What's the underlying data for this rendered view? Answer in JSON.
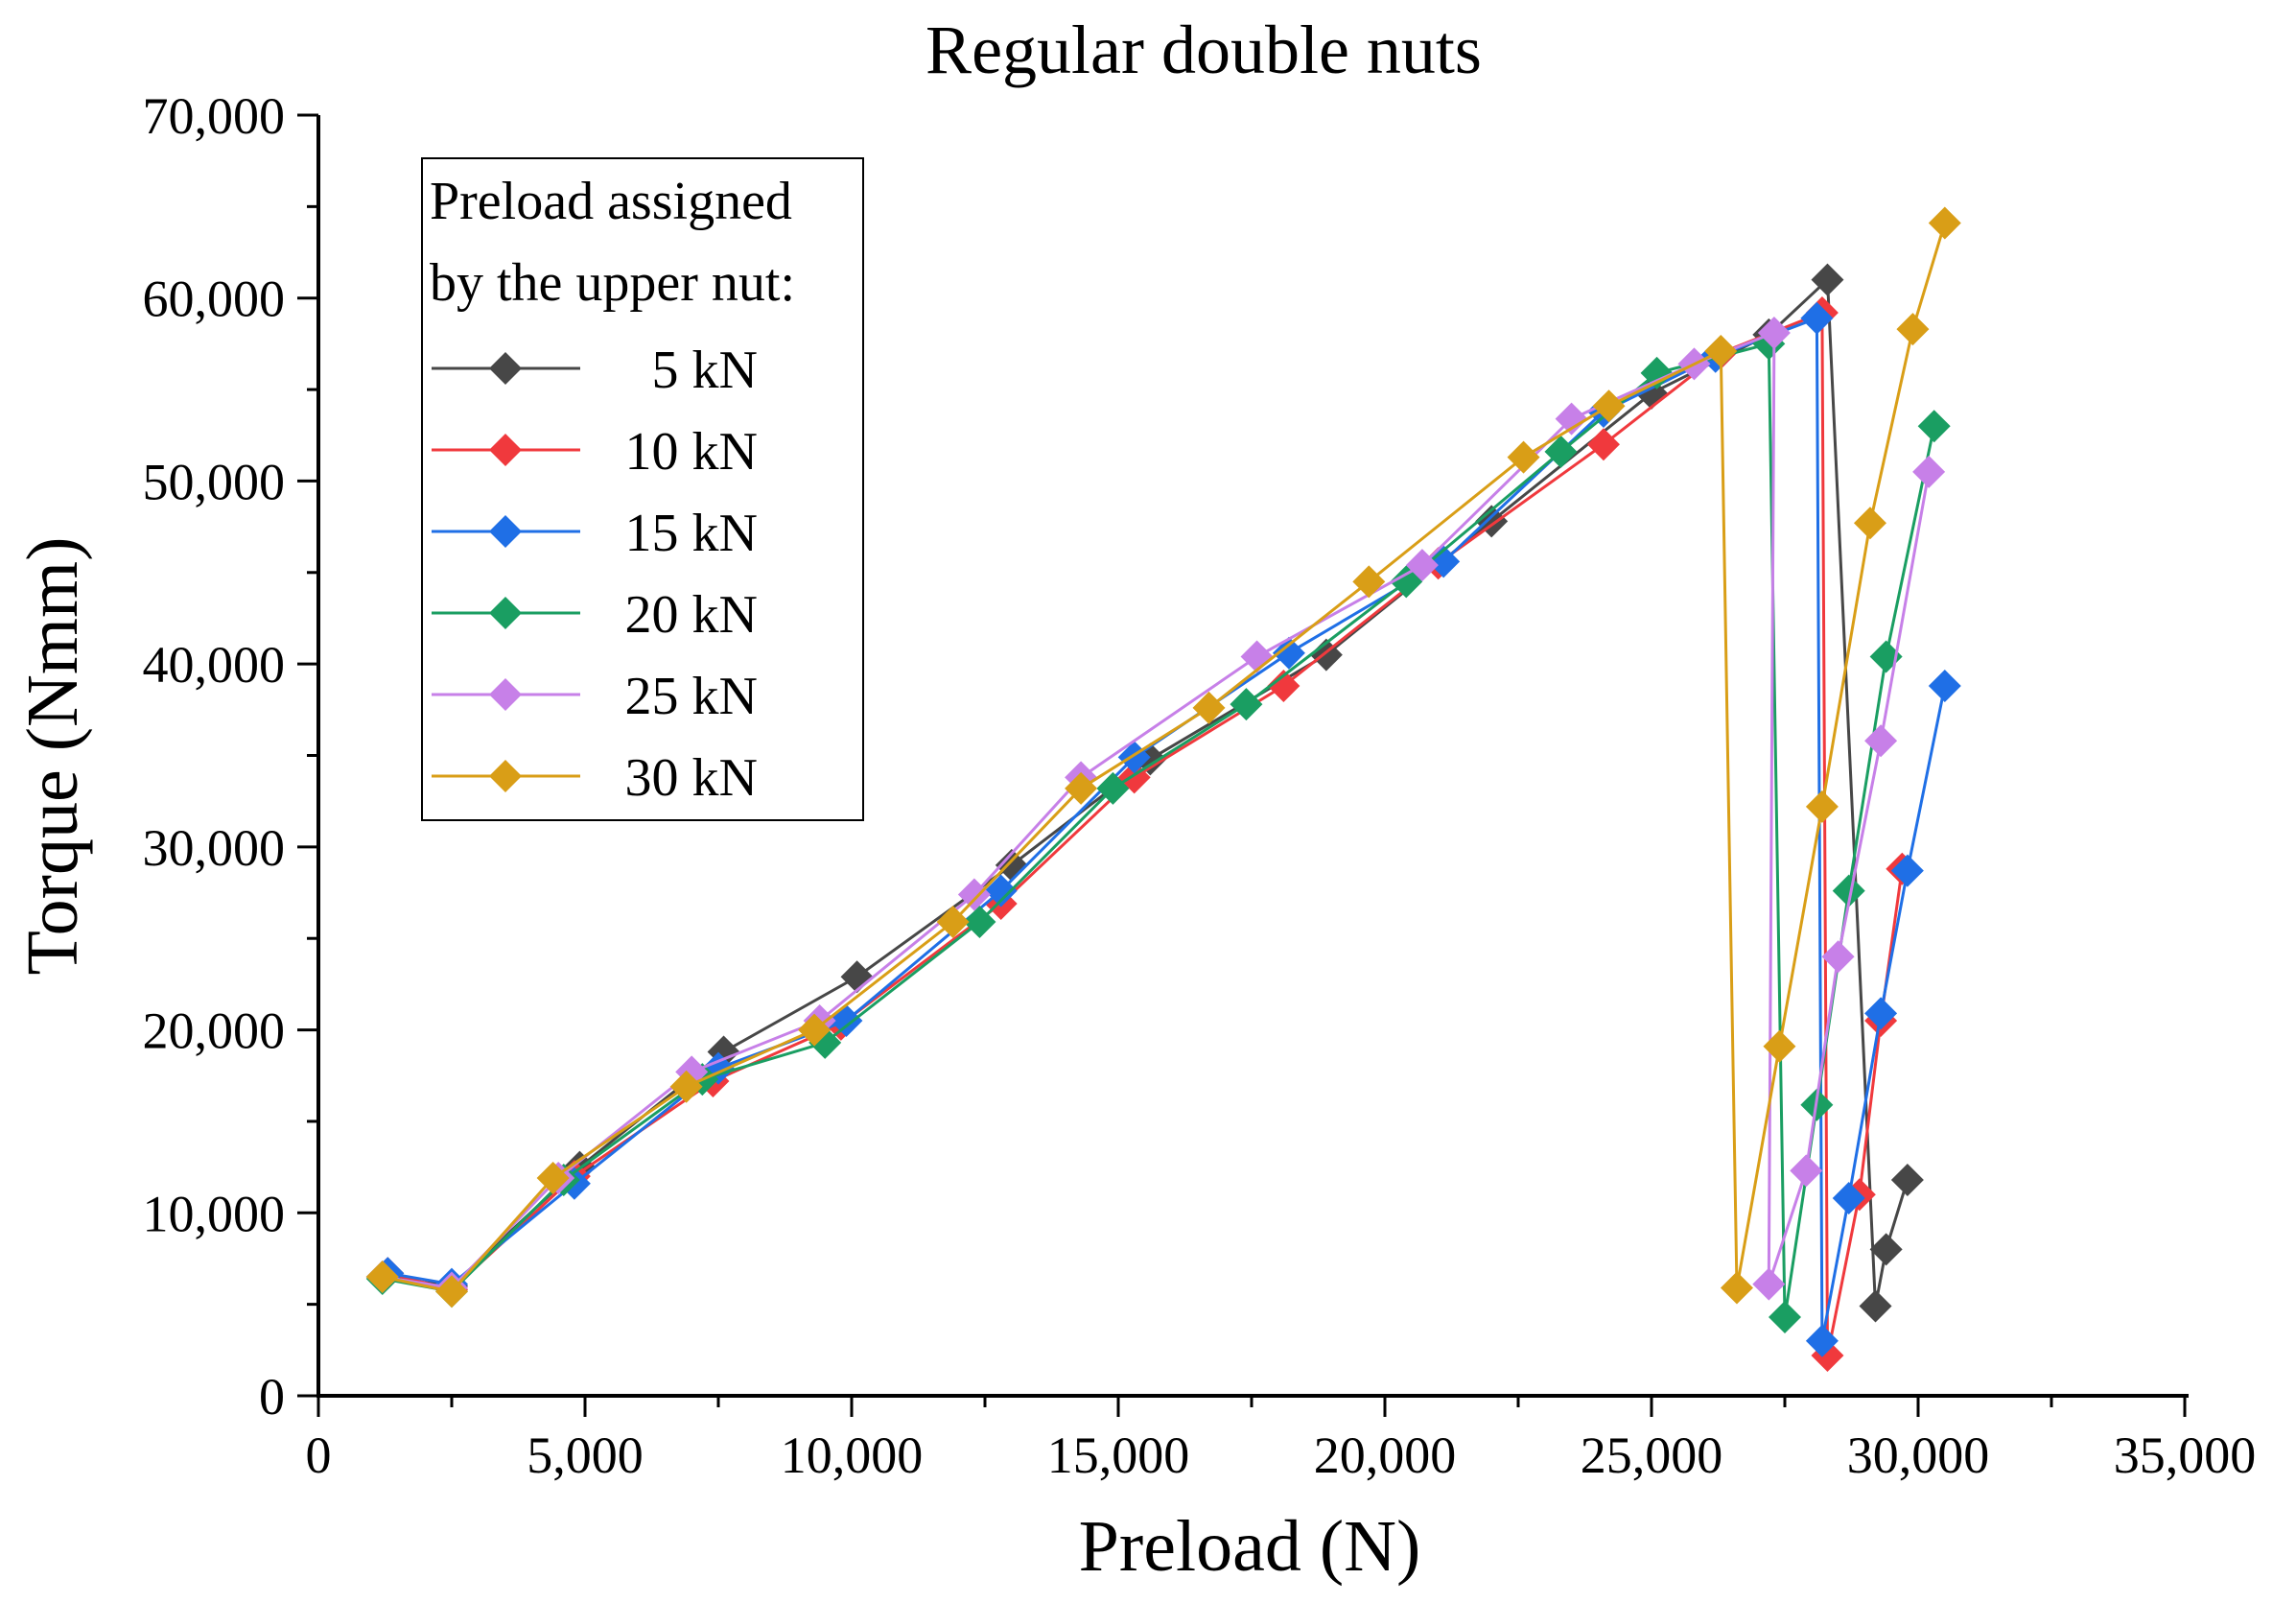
{
  "chart_data": {
    "type": "line",
    "title": "Regular double nuts",
    "xlabel": "Preload (N)",
    "ylabel": "Torque (Nmm)",
    "xlim": [
      0,
      35000
    ],
    "ylim": [
      0,
      70000
    ],
    "xticks": [
      0,
      5000,
      10000,
      15000,
      20000,
      25000,
      30000,
      35000
    ],
    "yticks": [
      0,
      10000,
      20000,
      30000,
      40000,
      50000,
      60000,
      70000
    ],
    "xtick_labels": [
      "0",
      "5,000",
      "10,000",
      "15,000",
      "20,000",
      "25,000",
      "30,000",
      "35,000"
    ],
    "ytick_labels": [
      "0",
      "10,000",
      "20,000",
      "30,000",
      "40,000",
      "50,000",
      "60,000",
      "70,000"
    ],
    "grid": false,
    "marker": "diamond",
    "legend": {
      "title_lines": [
        "Preload assigned",
        "by the upper nut:"
      ],
      "placement": "top-left"
    },
    "series": [
      {
        "name": "5 kN",
        "color": "#474747",
        "x": [
          1200,
          2500,
          4900,
          7600,
          10100,
          13000,
          15600,
          18900,
          22000,
          25000,
          27200,
          28300,
          29200,
          29400,
          29800
        ],
        "y": [
          6500,
          6000,
          12500,
          18800,
          22900,
          29000,
          34800,
          40500,
          47800,
          54800,
          58000,
          61000,
          4900,
          8000,
          11800
        ]
      },
      {
        "name": "10 kN",
        "color": "#f0393d",
        "x": [
          1300,
          2500,
          4800,
          7400,
          9800,
          12800,
          15300,
          18100,
          21000,
          24100,
          26300,
          28200,
          28300,
          28900,
          29300,
          29700
        ],
        "y": [
          6700,
          5800,
          12000,
          17200,
          20300,
          26900,
          33800,
          38800,
          45500,
          52000,
          57000,
          59200,
          2200,
          11000,
          20500,
          28800
        ]
      },
      {
        "name": "15 kN",
        "color": "#1f6fe6",
        "x": [
          1300,
          2500,
          4800,
          7500,
          9900,
          12800,
          15300,
          18200,
          21100,
          24100,
          26200,
          28100,
          28200,
          28700,
          29300,
          29800,
          30500
        ],
        "y": [
          6700,
          6100,
          11600,
          17900,
          20500,
          27600,
          34900,
          40600,
          45600,
          53800,
          56800,
          58900,
          3000,
          10800,
          20900,
          28700,
          38800
        ]
      },
      {
        "name": "20 kN",
        "color": "#1a9e62",
        "x": [
          1200,
          2500,
          4600,
          7200,
          9500,
          12400,
          14900,
          17400,
          20400,
          23300,
          25100,
          27200,
          27500,
          28100,
          28700,
          29400,
          30300
        ],
        "y": [
          6400,
          5700,
          11800,
          17300,
          19300,
          25900,
          33200,
          37800,
          44500,
          51600,
          55900,
          57500,
          4300,
          15900,
          27600,
          40400,
          53000
        ]
      },
      {
        "name": "25 kN",
        "color": "#c780e8",
        "x": [
          1200,
          2500,
          4500,
          7000,
          9400,
          12300,
          14300,
          17600,
          20700,
          23500,
          25800,
          27300,
          27200,
          27900,
          28500,
          29300,
          30200
        ],
        "y": [
          6500,
          5900,
          11900,
          17700,
          20500,
          27400,
          33800,
          40400,
          45400,
          53400,
          56400,
          58100,
          6100,
          12300,
          24000,
          35800,
          50500
        ]
      },
      {
        "name": "30 kN",
        "color": "#d99e17",
        "x": [
          1200,
          2500,
          4400,
          6900,
          9300,
          11900,
          14300,
          16700,
          19700,
          22600,
          24200,
          26300,
          26600,
          27400,
          28200,
          29100,
          29900,
          30500
        ],
        "y": [
          6500,
          5700,
          11900,
          16900,
          20000,
          25900,
          33200,
          37600,
          44500,
          51300,
          54100,
          57100,
          5900,
          19100,
          32200,
          47700,
          58300,
          64100
        ]
      }
    ]
  }
}
